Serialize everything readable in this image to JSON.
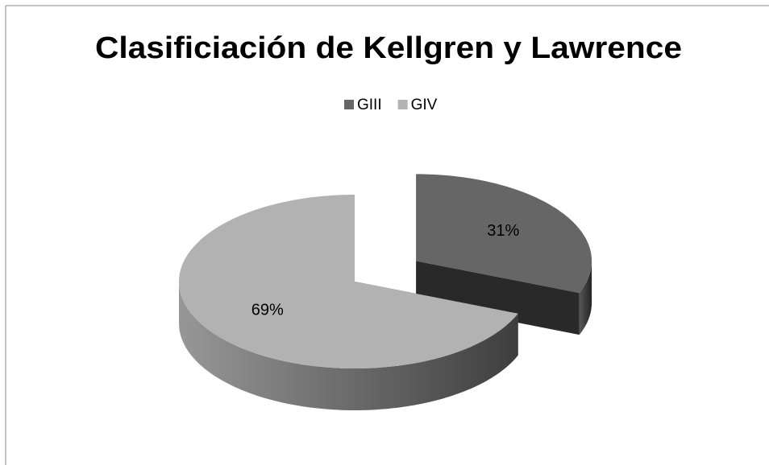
{
  "chart_data": {
    "type": "pie",
    "title": "Clasificiación de Kellgren y Lawrence",
    "categories": [
      "GIII",
      "GIV"
    ],
    "values": [
      31,
      69
    ],
    "value_labels": [
      "31%",
      "69%"
    ],
    "colors": [
      "#666666",
      "#b2b2b2"
    ],
    "legend": "top",
    "exploded": [
      true,
      false
    ]
  }
}
